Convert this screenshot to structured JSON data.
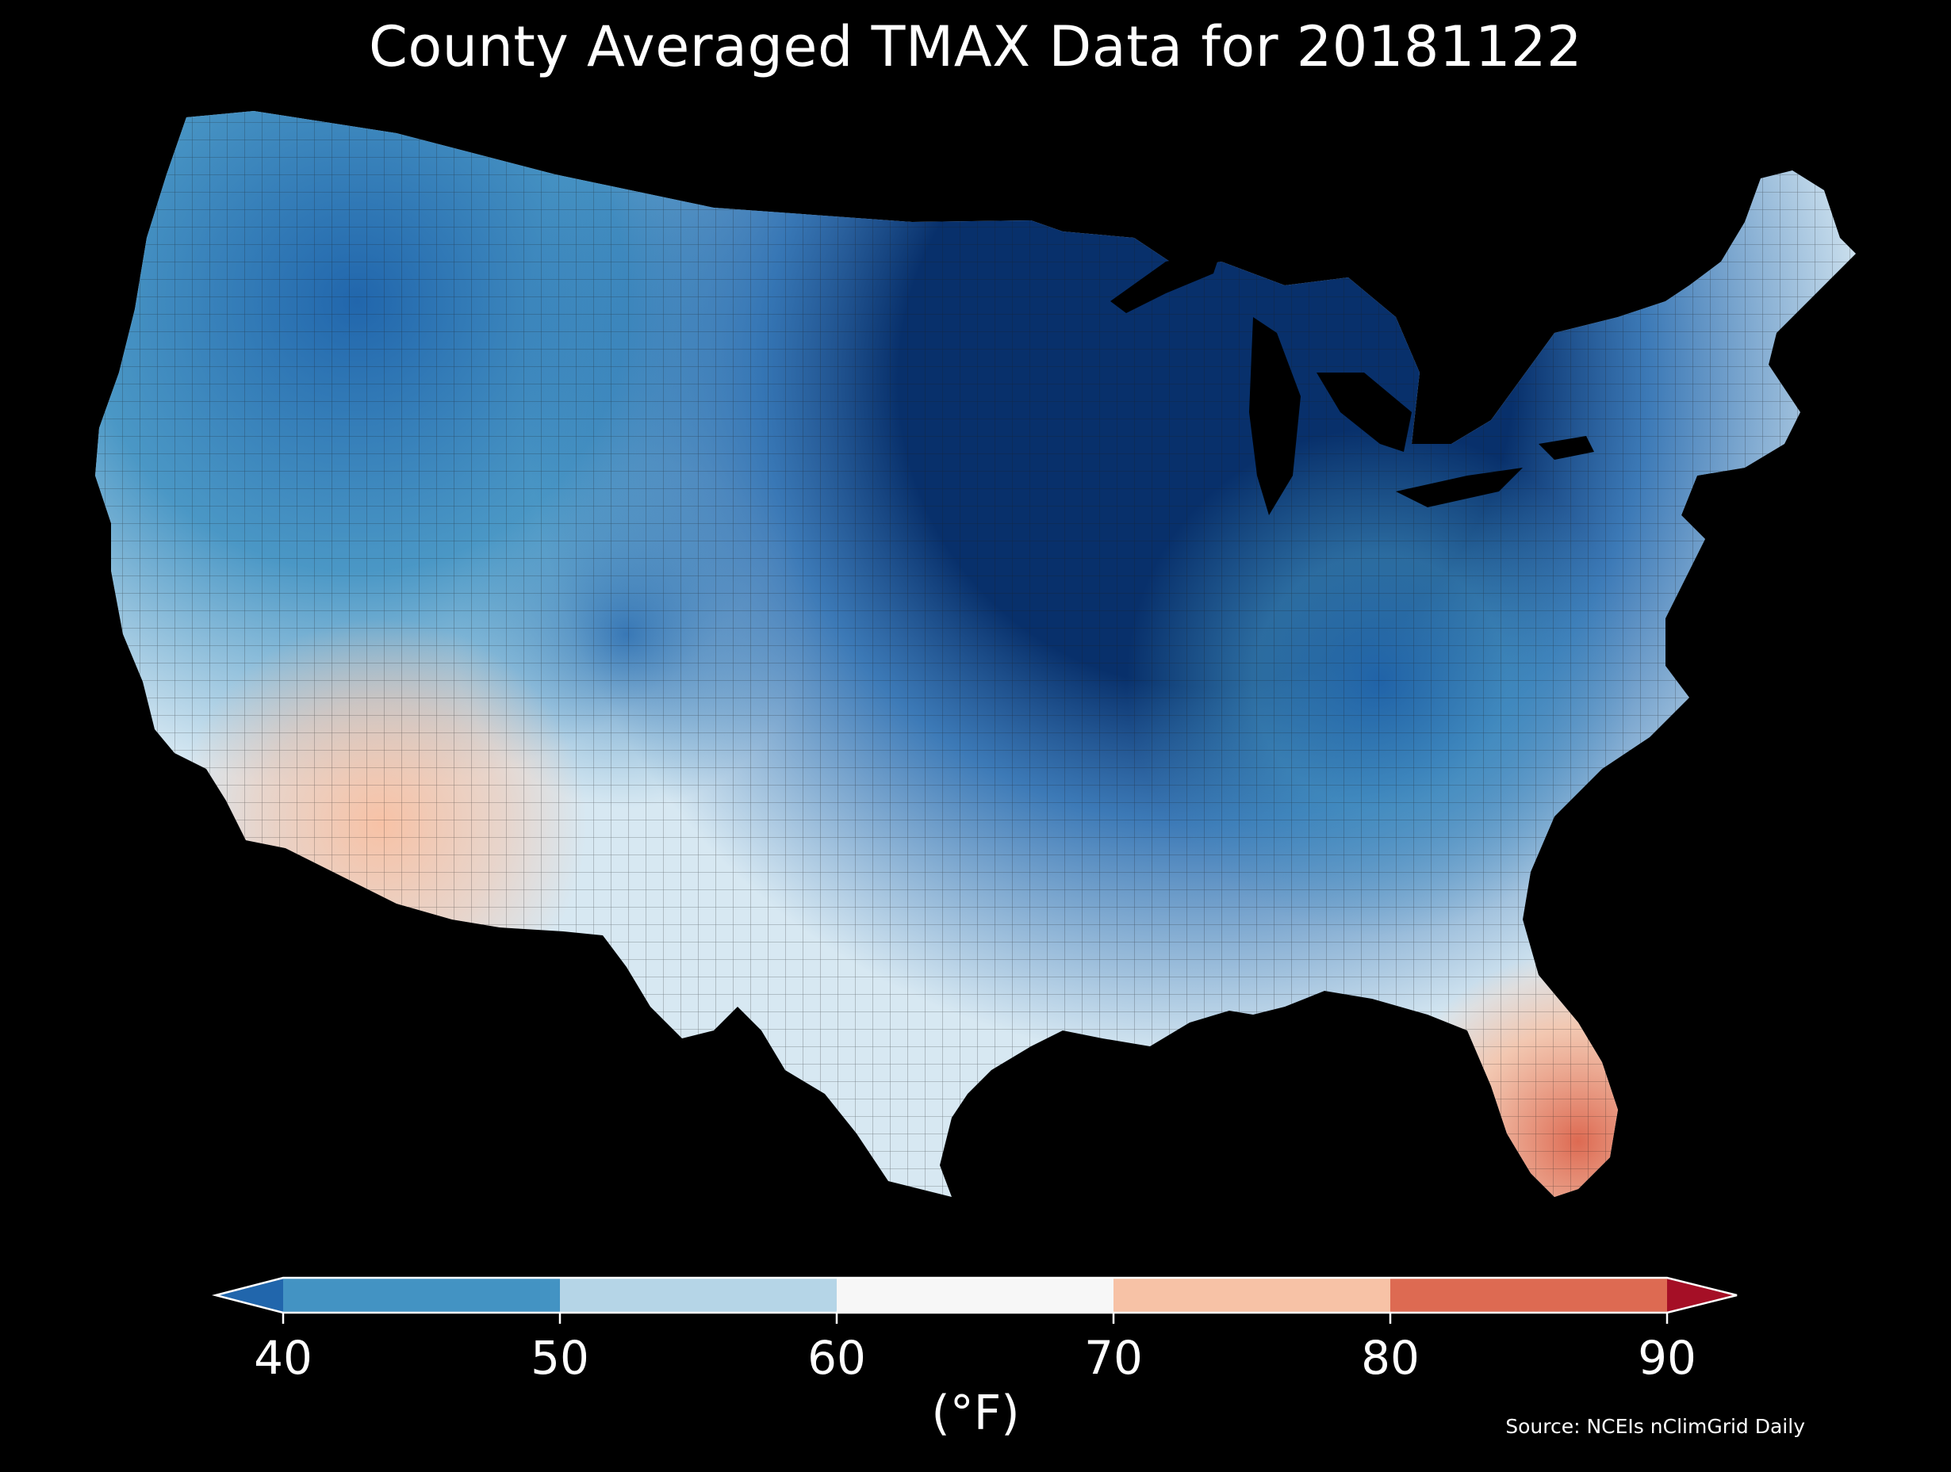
{
  "title": "County Averaged TMAX Data for 20181122",
  "colorbar": {
    "unit_label": "(°F)",
    "ticks": [
      "40",
      "50",
      "60",
      "70",
      "80",
      "90"
    ],
    "bins": [
      {
        "range": "<40",
        "color": "#2166ac"
      },
      {
        "range": "40-50",
        "color": "#4393c3"
      },
      {
        "range": "50-60",
        "color": "#b5d5e7"
      },
      {
        "range": "60-70",
        "color": "#f7f7f7"
      },
      {
        "range": "70-80",
        "color": "#f7c2a6"
      },
      {
        "range": "80-90",
        "color": "#dd6a52"
      },
      {
        "range": ">90",
        "color": "#a50f26"
      }
    ]
  },
  "source": "Source: NCEIs nClimGrid Daily",
  "palette": {
    "background": "#000000",
    "dark_blue": "#08306b",
    "mid_blue": "#2166ac",
    "light_blue": "#4393c3",
    "pale_blue": "#b5d5e7",
    "near_white": "#f7f7f7",
    "peach": "#f7c2a6",
    "red": "#dd6a52"
  }
}
